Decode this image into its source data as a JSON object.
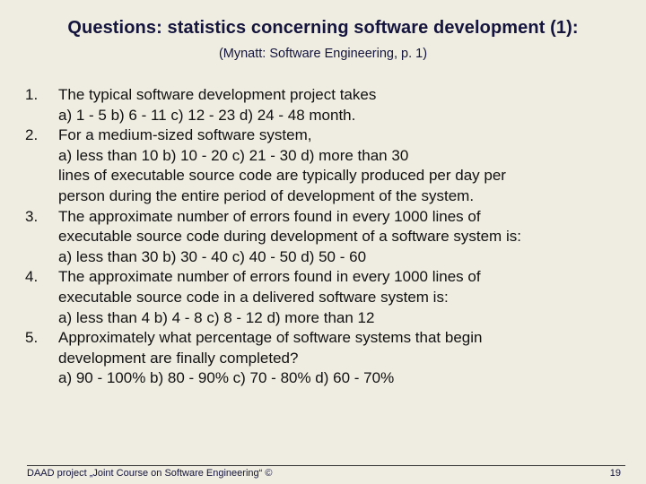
{
  "title": "Questions: statistics concerning software development (1):",
  "subtitle": "(Mynatt: Software Engineering, p. 1)",
  "questions": [
    {
      "number": "1.",
      "lines": [
        "The typical software development project takes",
        "a) 1 - 5 b) 6 - 11 c) 12 - 23 d) 24 - 48 month."
      ]
    },
    {
      "number": "2.",
      "lines": [
        "For a medium-sized software system,",
        "a) less than 10 b) 10 - 20 c) 21 - 30 d) more than 30",
        "lines of executable source code are typically produced per day per",
        "person during the entire period of development of the system."
      ]
    },
    {
      "number": "3.",
      "lines": [
        "The approximate number of errors found in every 1000 lines of",
        "executable source code during development of a software system is:",
        "a) less than 30 b) 30 - 40 c) 40 - 50 d) 50 - 60"
      ]
    },
    {
      "number": "4.",
      "lines": [
        "The approximate number of errors found in every 1000 lines of",
        "executable source code in a delivered software system is:",
        "a) less than 4 b) 4 - 8 c) 8 - 12 d) more than 12"
      ]
    },
    {
      "number": "5.",
      "lines": [
        "Approximately what percentage of software systems that begin",
        "development are finally completed?",
        "a) 90 - 100% b) 80 - 90% c) 70 - 80% d) 60 - 70%"
      ]
    }
  ],
  "footer": {
    "text": "DAAD project „Joint Course on Software Engineering“ ©",
    "page_number": "19"
  },
  "colors": {
    "background": "#EFEDE1",
    "title": "#14143C"
  }
}
